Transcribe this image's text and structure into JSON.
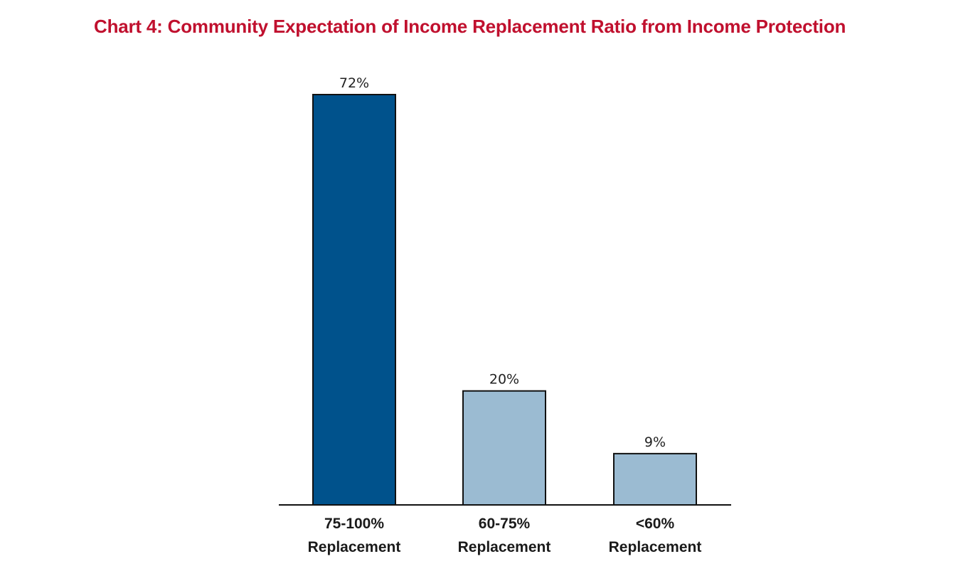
{
  "colors": {
    "title": "#c0102e",
    "bar_primary": "#00528c",
    "bar_secondary": "#9bbbd2",
    "bar_outline": "#111111",
    "axis": "#111111"
  },
  "chart_data": {
    "type": "bar",
    "title": "Chart 4: Community Expectation of Income Replacement Ratio from Income Protection",
    "xlabel": "",
    "ylabel": "",
    "categories": [
      [
        "75-100%",
        "Replacement"
      ],
      [
        "60-75%",
        "Replacement"
      ],
      [
        "<60%",
        "Replacement"
      ]
    ],
    "values": [
      72,
      20,
      9
    ],
    "value_labels": [
      "72%",
      "20%",
      "9%"
    ],
    "bar_colors": [
      "#00528c",
      "#9bbbd2",
      "#9bbbd2"
    ],
    "ylim": [
      0,
      72
    ],
    "grid": false,
    "legend": "none",
    "y_axis_visible": false
  }
}
